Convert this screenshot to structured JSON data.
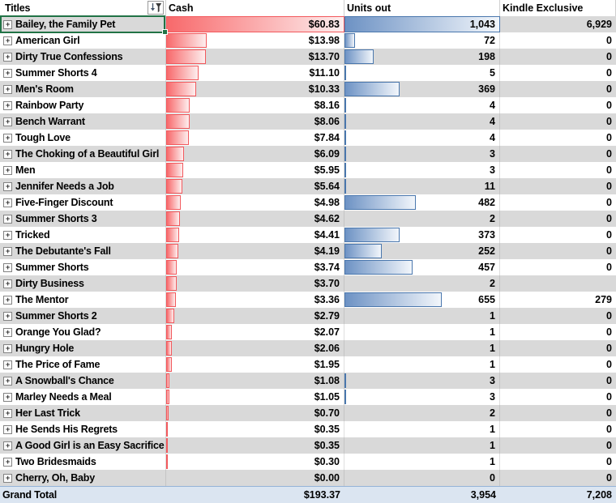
{
  "header": {
    "titles": "Titles",
    "cash": "Cash",
    "units": "Units out",
    "kindle": "Kindle Exclusive"
  },
  "filter": {
    "icon": "filter-sort-icon"
  },
  "expand_glyph": "+",
  "bar_max": {
    "cash": 60.83,
    "units": 1043
  },
  "colors": {
    "row_alt": "#d9d9d9",
    "grand_total_bg": "#dbe5f1",
    "grand_total_border": "#95b3d7",
    "cash_bar": "#f8696b",
    "cash_bar_border": "#f2595d",
    "units_bar": "#6d92c4",
    "units_bar_border": "#4a77ad",
    "selection": "#217346"
  },
  "rows": [
    {
      "title": "Bailey, the Family Pet",
      "cash": "$60.83",
      "cash_value": 60.83,
      "units": "1,043",
      "units_value": 1043,
      "kindle": "6,929",
      "selected": true
    },
    {
      "title": "American Girl",
      "cash": "$13.98",
      "cash_value": 13.98,
      "units": "72",
      "units_value": 72,
      "kindle": "0"
    },
    {
      "title": "Dirty True Confessions",
      "cash": "$13.70",
      "cash_value": 13.7,
      "units": "198",
      "units_value": 198,
      "kindle": "0"
    },
    {
      "title": "Summer Shorts 4",
      "cash": "$11.10",
      "cash_value": 11.1,
      "units": "5",
      "units_value": 5,
      "kindle": "0"
    },
    {
      "title": "Men's Room",
      "cash": "$10.33",
      "cash_value": 10.33,
      "units": "369",
      "units_value": 369,
      "kindle": "0"
    },
    {
      "title": "Rainbow Party",
      "cash": "$8.16",
      "cash_value": 8.16,
      "units": "4",
      "units_value": 4,
      "kindle": "0"
    },
    {
      "title": "Bench Warrant",
      "cash": "$8.06",
      "cash_value": 8.06,
      "units": "4",
      "units_value": 4,
      "kindle": "0"
    },
    {
      "title": "Tough Love",
      "cash": "$7.84",
      "cash_value": 7.84,
      "units": "4",
      "units_value": 4,
      "kindle": "0"
    },
    {
      "title": "The Choking of a Beautiful Girl",
      "cash": "$6.09",
      "cash_value": 6.09,
      "units": "3",
      "units_value": 3,
      "kindle": "0"
    },
    {
      "title": "Men",
      "cash": "$5.95",
      "cash_value": 5.95,
      "units": "3",
      "units_value": 3,
      "kindle": "0"
    },
    {
      "title": "Jennifer Needs a Job",
      "cash": "$5.64",
      "cash_value": 5.64,
      "units": "11",
      "units_value": 11,
      "kindle": "0"
    },
    {
      "title": "Five-Finger Discount",
      "cash": "$4.98",
      "cash_value": 4.98,
      "units": "482",
      "units_value": 482,
      "kindle": "0"
    },
    {
      "title": "Summer Shorts 3",
      "cash": "$4.62",
      "cash_value": 4.62,
      "units": "2",
      "units_value": 2,
      "kindle": "0"
    },
    {
      "title": "Tricked",
      "cash": "$4.41",
      "cash_value": 4.41,
      "units": "373",
      "units_value": 373,
      "kindle": "0"
    },
    {
      "title": "The Debutante's Fall",
      "cash": "$4.19",
      "cash_value": 4.19,
      "units": "252",
      "units_value": 252,
      "kindle": "0"
    },
    {
      "title": "Summer Shorts",
      "cash": "$3.74",
      "cash_value": 3.74,
      "units": "457",
      "units_value": 457,
      "kindle": "0"
    },
    {
      "title": "Dirty Business",
      "cash": "$3.70",
      "cash_value": 3.7,
      "units": "2",
      "units_value": 2,
      "kindle": ""
    },
    {
      "title": "The Mentor",
      "cash": "$3.36",
      "cash_value": 3.36,
      "units": "655",
      "units_value": 655,
      "kindle": "279"
    },
    {
      "title": "Summer Shorts 2",
      "cash": "$2.79",
      "cash_value": 2.79,
      "units": "1",
      "units_value": 1,
      "kindle": "0"
    },
    {
      "title": "Orange You Glad?",
      "cash": "$2.07",
      "cash_value": 2.07,
      "units": "1",
      "units_value": 1,
      "kindle": "0"
    },
    {
      "title": "Hungry Hole",
      "cash": "$2.06",
      "cash_value": 2.06,
      "units": "1",
      "units_value": 1,
      "kindle": "0"
    },
    {
      "title": "The Price of Fame",
      "cash": "$1.95",
      "cash_value": 1.95,
      "units": "1",
      "units_value": 1,
      "kindle": "0"
    },
    {
      "title": "A Snowball's Chance",
      "cash": "$1.08",
      "cash_value": 1.08,
      "units": "3",
      "units_value": 3,
      "kindle": "0"
    },
    {
      "title": "Marley Needs a Meal",
      "cash": "$1.05",
      "cash_value": 1.05,
      "units": "3",
      "units_value": 3,
      "kindle": "0"
    },
    {
      "title": "Her Last Trick",
      "cash": "$0.70",
      "cash_value": 0.7,
      "units": "2",
      "units_value": 2,
      "kindle": "0"
    },
    {
      "title": "He Sends His Regrets",
      "cash": "$0.35",
      "cash_value": 0.35,
      "units": "1",
      "units_value": 1,
      "kindle": "0"
    },
    {
      "title": "A Good Girl is an Easy Sacrifice",
      "cash": "$0.35",
      "cash_value": 0.35,
      "units": "1",
      "units_value": 1,
      "kindle": "0"
    },
    {
      "title": "Two Bridesmaids",
      "cash": "$0.30",
      "cash_value": 0.3,
      "units": "1",
      "units_value": 1,
      "kindle": "0"
    },
    {
      "title": "Cherry, Oh, Baby",
      "cash": "$0.00",
      "cash_value": 0.0,
      "units": "0",
      "units_value": 0,
      "kindle": "0"
    }
  ],
  "grand_total": {
    "label": "Grand Total",
    "cash": "$193.37",
    "units": "3,954",
    "kindle": "7,208"
  }
}
